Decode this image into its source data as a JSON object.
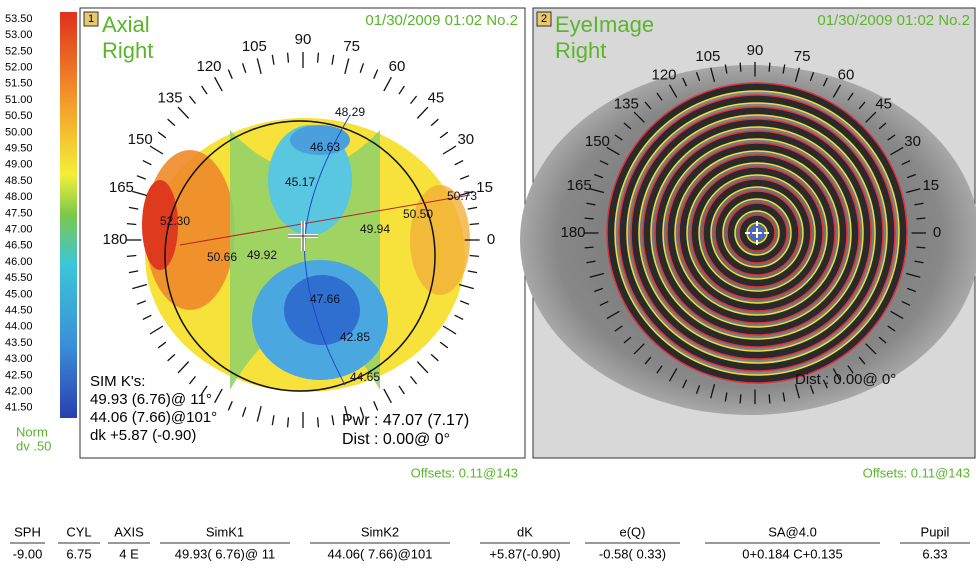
{
  "scale": {
    "labels": [
      "53.50",
      "53.00",
      "52.50",
      "52.00",
      "51.50",
      "51.00",
      "50.50",
      "50.00",
      "49.50",
      "49.00",
      "48.50",
      "48.00",
      "47.50",
      "47.00",
      "46.50",
      "46.00",
      "45.50",
      "45.00",
      "44.50",
      "44.00",
      "43.50",
      "43.00",
      "42.50",
      "42.00",
      "41.50"
    ],
    "norm": "Norm",
    "dv": "dv .50"
  },
  "left_panel": {
    "badge": "1",
    "title": "Axial",
    "eye": "Right",
    "timestamp": "01/30/2009 01:02 No.2",
    "angles": [
      0,
      15,
      30,
      45,
      60,
      75,
      90,
      105,
      120,
      135,
      150,
      165,
      180
    ],
    "map_values": [
      "48.29",
      "46.63",
      "45.17",
      "50.73",
      "50.50",
      "49.94",
      "52.30",
      "50.66",
      "49.92",
      "47.66",
      "42.85",
      "44.65"
    ],
    "simk_title": "SIM K's:",
    "simk_lines": [
      "49.93 (6.76)@ 11°",
      "44.06 (7.66)@101°",
      "dk +5.87 (-0.90)"
    ],
    "pwr": "Pwr : 47.07 (7.17)",
    "dist": "Dist : 0.00@ 0°",
    "offsets": "Offsets: 0.11@143"
  },
  "right_panel": {
    "badge": "2",
    "title": "EyeImage",
    "eye": "Right",
    "timestamp": "01/30/2009 01:02 No.2",
    "angles": [
      0,
      15,
      30,
      45,
      60,
      75,
      90,
      105,
      120,
      135,
      150,
      165,
      180
    ],
    "dist": "Dist : 0.00@ 0°",
    "offsets": "Offsets: 0.11@143"
  },
  "table": {
    "headers": [
      "SPH",
      "CYL",
      "AXIS",
      "SimK1",
      "SimK2",
      "dK",
      "e(Q)",
      "SA@4.0",
      "Pupil"
    ],
    "rows": [
      [
        "-9.00",
        "6.75",
        "4 E",
        "49.93( 6.76)@ 11",
        "44.06( 7.66)@101",
        "+5.87(-0.90)",
        "-0.58( 0.33)",
        "0+0.184  C+0.135",
        "6.33"
      ]
    ]
  }
}
